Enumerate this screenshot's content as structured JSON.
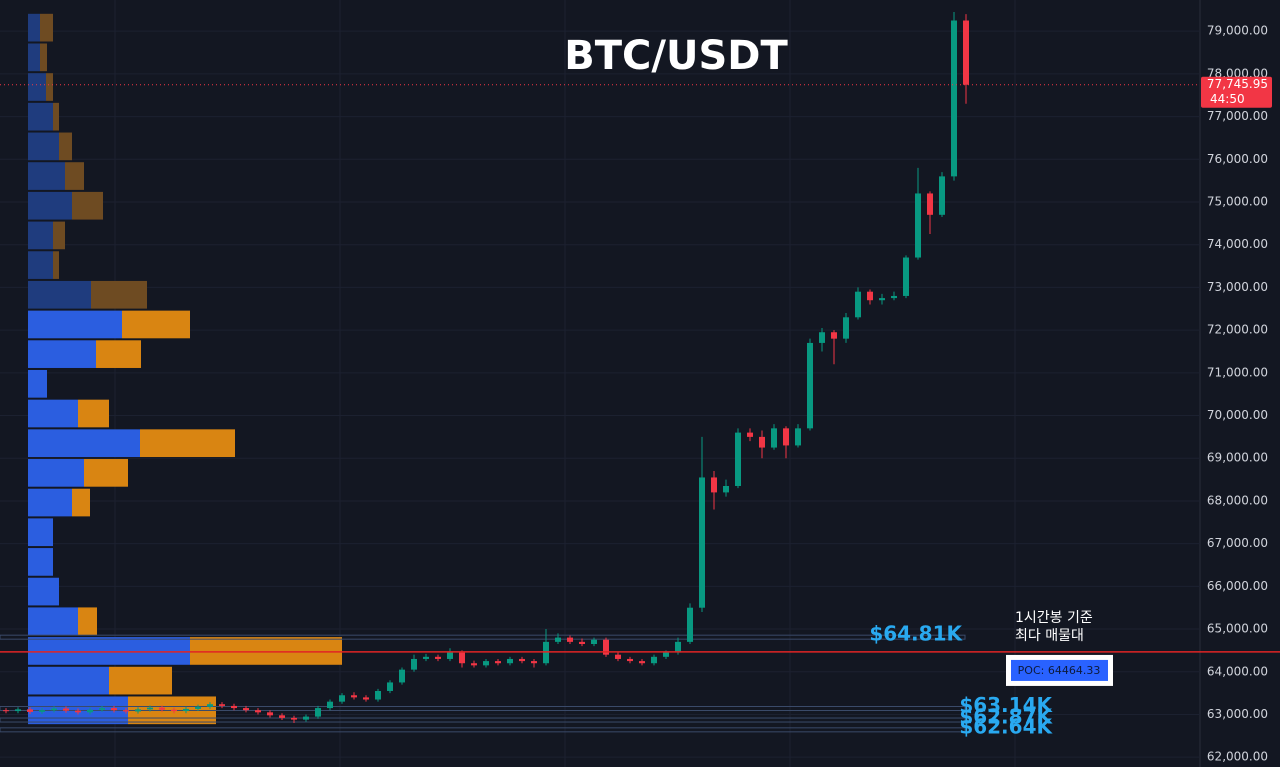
{
  "chart_data": {
    "type": "candlestick",
    "title": "BTC/USDT",
    "ylim": [
      61770,
      79730
    ],
    "yticks": [
      {
        "value": 62000,
        "label": "62,000.00"
      },
      {
        "value": 63000,
        "label": "63,000.00"
      },
      {
        "value": 64000,
        "label": "64,000.00"
      },
      {
        "value": 65000,
        "label": "65,000.00"
      },
      {
        "value": 66000,
        "label": "66,000.00"
      },
      {
        "value": 67000,
        "label": "67,000.00"
      },
      {
        "value": 68000,
        "label": "68,000.00"
      },
      {
        "value": 69000,
        "label": "69,000.00"
      },
      {
        "value": 70000,
        "label": "70,000.00"
      },
      {
        "value": 71000,
        "label": "71,000.00"
      },
      {
        "value": 72000,
        "label": "72,000.00"
      },
      {
        "value": 73000,
        "label": "73,000.00"
      },
      {
        "value": 74000,
        "label": "74,000.00"
      },
      {
        "value": 75000,
        "label": "75,000.00"
      },
      {
        "value": 76000,
        "label": "76,000.00"
      },
      {
        "value": 77000,
        "label": "77,000.00"
      },
      {
        "value": 78000,
        "label": "78,000.00"
      },
      {
        "value": 79000,
        "label": "79,000.00"
      }
    ],
    "grid": true,
    "up_color": "#089981",
    "down_color": "#f23645",
    "open": [
      63100,
      63080,
      63120,
      63060,
      63100,
      63140,
      63090,
      63050,
      63110,
      63150,
      63100,
      63070,
      63120,
      63160,
      63110,
      63080,
      63130,
      63180,
      63240,
      63200,
      63150,
      63100,
      63050,
      62980,
      62920,
      62880,
      62950,
      63150,
      63300,
      63450,
      63400,
      63350,
      63550,
      63750,
      64050,
      64300,
      64350,
      64300,
      64450,
      64200,
      64150,
      64250,
      64200,
      64300,
      64250,
      64200,
      64700,
      64800,
      64700,
      64650,
      64750,
      64400,
      64300,
      64250,
      64200,
      64350,
      64450,
      64700,
      65500,
      68550,
      68200,
      68350,
      69600,
      69500,
      69250,
      69700,
      69300,
      69700,
      71700,
      71950,
      71800,
      72300,
      72900,
      72700,
      72750,
      72800,
      73700,
      75200,
      74700,
      75600,
      79250
    ],
    "high": [
      63150,
      63170,
      63170,
      63150,
      63190,
      63190,
      63140,
      63160,
      63200,
      63200,
      63150,
      63170,
      63210,
      63210,
      63160,
      63180,
      63230,
      63290,
      63290,
      63250,
      63200,
      63150,
      63100,
      63030,
      62970,
      63000,
      63200,
      63350,
      63500,
      63520,
      63450,
      63600,
      63800,
      64100,
      64400,
      64420,
      64400,
      64550,
      64500,
      64260,
      64300,
      64300,
      64350,
      64350,
      64300,
      65000,
      64900,
      64850,
      64780,
      64800,
      64800,
      64450,
      64350,
      64300,
      64400,
      64500,
      64800,
      65600,
      69500,
      68700,
      68500,
      69700,
      69700,
      69650,
      69800,
      69750,
      69800,
      71800,
      72050,
      72000,
      72400,
      73000,
      72950,
      72850,
      72900,
      73750,
      75800,
      75250,
      75700,
      79450,
      79400
    ],
    "low": [
      63030,
      63030,
      63010,
      63010,
      63050,
      63040,
      63000,
      63000,
      63060,
      63050,
      63020,
      63020,
      63070,
      63060,
      63030,
      63030,
      63080,
      63130,
      63150,
      63100,
      63050,
      63000,
      62930,
      62870,
      62800,
      62830,
      62900,
      63100,
      63250,
      63350,
      63300,
      63300,
      63500,
      63700,
      64000,
      64250,
      64250,
      64250,
      64100,
      64100,
      64100,
      64150,
      64150,
      64200,
      64100,
      64150,
      64650,
      64650,
      64600,
      64600,
      64350,
      64250,
      64200,
      64150,
      64150,
      64300,
      64400,
      64650,
      65400,
      67800,
      68100,
      68300,
      69400,
      69000,
      69200,
      69000,
      69250,
      69650,
      71500,
      71200,
      71700,
      72250,
      72600,
      72600,
      72700,
      72750,
      73650,
      74250,
      74650,
      75500,
      77300
    ],
    "close": [
      63080,
      63120,
      63060,
      63100,
      63140,
      63090,
      63050,
      63110,
      63150,
      63100,
      63070,
      63120,
      63160,
      63110,
      63080,
      63130,
      63180,
      63240,
      63200,
      63150,
      63100,
      63050,
      62980,
      62920,
      62880,
      62950,
      63150,
      63300,
      63450,
      63400,
      63350,
      63550,
      63750,
      64050,
      64300,
      64350,
      64300,
      64450,
      64200,
      64150,
      64250,
      64200,
      64300,
      64250,
      64200,
      64700,
      64800,
      64700,
      64650,
      64750,
      64400,
      64300,
      64250,
      64200,
      64350,
      64450,
      64700,
      65500,
      68550,
      68200,
      68350,
      69600,
      69500,
      69250,
      69700,
      69300,
      69700,
      71700,
      71950,
      71800,
      72300,
      72900,
      72700,
      72750,
      72800,
      73700,
      75200,
      74700,
      75600,
      79250,
      77745.95
    ],
    "profile": {
      "bins": [
        62750,
        63445,
        64140,
        64835,
        65530,
        66225,
        66920,
        67615,
        68310,
        69005,
        69700,
        70395,
        71090,
        71785,
        72480,
        73175,
        73870,
        74565,
        75260,
        75955,
        76650,
        77345,
        78040,
        78735,
        79430
      ],
      "buy": [
        100,
        81,
        162,
        50,
        31,
        25,
        25,
        44,
        56,
        112,
        50,
        19,
        68,
        94,
        63,
        25,
        25,
        44,
        37,
        31,
        25,
        18,
        12,
        12
      ],
      "sell": [
        88,
        63,
        152,
        19,
        0,
        0,
        0,
        18,
        44,
        95,
        31,
        0,
        45,
        68,
        56,
        6,
        12,
        31,
        19,
        13,
        6,
        7,
        7,
        13
      ],
      "buy_color": "#2b5ee0",
      "sell_color": "#d98512",
      "dim_buy_color": "#1f3c7e",
      "dim_sell_color": "#6e4b22",
      "value_area": [
        62750,
        72480
      ]
    },
    "levels": [
      {
        "value": 64810,
        "label": "$64.81K"
      },
      {
        "value": 63140,
        "label": "$63.14K"
      },
      {
        "value": 62870,
        "label": "$62.87K"
      },
      {
        "value": 62640,
        "label": "$62.64K"
      }
    ],
    "level_color": "#29a9f0",
    "poc": {
      "value": 64464.33,
      "label": "POC: 64464.33",
      "color": "#e02424"
    },
    "annotation": [
      "1시간봉 기준",
      "최다 매물대"
    ],
    "last_price": {
      "value": 77745.95,
      "label": "77,745.95",
      "countdown": "44:50"
    }
  }
}
